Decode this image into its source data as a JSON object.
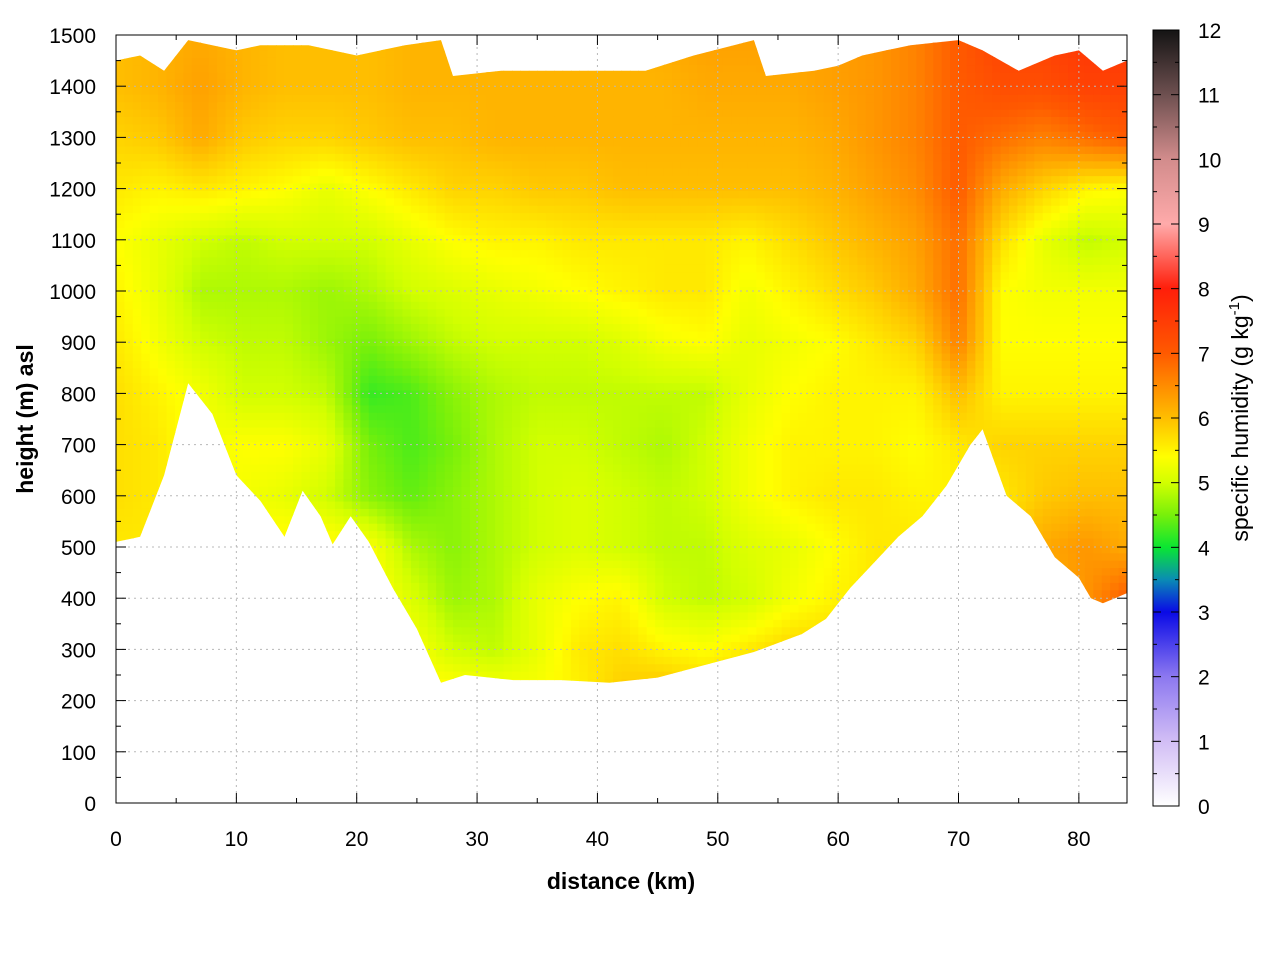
{
  "chart_data": {
    "type": "heatmap",
    "xlabel": "distance (km)",
    "ylabel": "height (m) asl",
    "xlim": [
      0,
      84
    ],
    "ylim": [
      0,
      1500
    ],
    "xticks": [
      0,
      10,
      20,
      30,
      40,
      50,
      60,
      70,
      80
    ],
    "yticks": [
      0,
      100,
      200,
      300,
      400,
      500,
      600,
      700,
      800,
      900,
      1000,
      1100,
      1200,
      1300,
      1400,
      1500
    ],
    "grid": true,
    "colorbar": {
      "title_text": "specific humidity (g kg",
      "title_superscript": "-1",
      "title_close": ")",
      "range": [
        0,
        12
      ],
      "ticks": [
        0,
        1,
        2,
        3,
        4,
        5,
        6,
        7,
        8,
        9,
        10,
        11,
        12
      ],
      "colormap": [
        {
          "value": 0,
          "color": "#ffffff"
        },
        {
          "value": 1,
          "color": "#d2bef5"
        },
        {
          "value": 2,
          "color": "#8c78f0"
        },
        {
          "value": 3,
          "color": "#0a0ae6"
        },
        {
          "value": 3.5,
          "color": "#0a8cb4"
        },
        {
          "value": 4,
          "color": "#0ae632"
        },
        {
          "value": 4.5,
          "color": "#78f00a"
        },
        {
          "value": 5,
          "color": "#d2ff00"
        },
        {
          "value": 5.4,
          "color": "#ffff00"
        },
        {
          "value": 6,
          "color": "#ffbe00"
        },
        {
          "value": 7,
          "color": "#ff5a00"
        },
        {
          "value": 8,
          "color": "#ff1e0a"
        },
        {
          "value": 9,
          "color": "#ffaaaa"
        },
        {
          "value": 10,
          "color": "#d28c8c"
        },
        {
          "value": 11,
          "color": "#6e5050"
        },
        {
          "value": 12,
          "color": "#141414"
        }
      ]
    },
    "terrain_height": {
      "x": [
        0,
        2,
        4,
        6,
        8,
        10,
        12,
        14,
        15.5,
        17,
        18,
        19.5,
        21,
        23,
        25,
        27,
        29,
        33,
        37,
        41,
        45,
        49,
        53,
        57,
        59,
        61,
        63,
        65,
        67,
        69,
        71,
        72,
        74,
        76,
        78,
        80,
        81,
        82,
        83,
        84
      ],
      "y": [
        510,
        520,
        640,
        820,
        760,
        640,
        590,
        520,
        610,
        560,
        505,
        560,
        510,
        420,
        340,
        235,
        250,
        240,
        240,
        235,
        245,
        270,
        295,
        330,
        360,
        420,
        470,
        520,
        560,
        620,
        700,
        730,
        600,
        560,
        480,
        440,
        400,
        390,
        400,
        410
      ]
    },
    "data_top": {
      "x": [
        0,
        2,
        4,
        6,
        8,
        10,
        12,
        16,
        20,
        24,
        27,
        28,
        32,
        36,
        40,
        44,
        48,
        53,
        54,
        58,
        60,
        62,
        66,
        70,
        72,
        75,
        78,
        80,
        82,
        84
      ],
      "y": [
        1450,
        1460,
        1430,
        1490,
        1480,
        1470,
        1480,
        1480,
        1460,
        1480,
        1490,
        1420,
        1430,
        1430,
        1430,
        1430,
        1460,
        1490,
        1420,
        1430,
        1440,
        1460,
        1480,
        1490,
        1470,
        1430,
        1460,
        1470,
        1430,
        1450
      ]
    },
    "field": {
      "x": [
        0,
        3.5,
        7,
        10.5,
        14,
        17.5,
        21,
        24.5,
        28,
        31.5,
        35,
        38.5,
        42,
        45.5,
        49,
        52.5,
        56,
        59.5,
        63,
        66.5,
        70,
        73.5,
        77,
        80.5,
        84
      ],
      "y": [
        200,
        300,
        400,
        500,
        600,
        700,
        800,
        900,
        1000,
        1100,
        1200,
        1300,
        1400,
        1500
      ],
      "q": [
        [
          5.5,
          5.5,
          5.5,
          5.5,
          5.5,
          5.5,
          5.5,
          5.4,
          5.6,
          5.5,
          5.4,
          5.5,
          5.9,
          6.1,
          5.9,
          5.8,
          5.8,
          5.8,
          5.8,
          5.8,
          5.8,
          5.8,
          5.9,
          6.0,
          6.2
        ],
        [
          5.5,
          5.5,
          5.5,
          5.5,
          5.5,
          5.5,
          5.5,
          5.4,
          5.0,
          4.9,
          5.2,
          5.6,
          5.7,
          5.5,
          5.4,
          5.6,
          5.8,
          5.8,
          5.8,
          5.8,
          5.8,
          5.8,
          5.9,
          6.0,
          6.2
        ],
        [
          5.5,
          5.5,
          5.5,
          5.5,
          5.5,
          5.5,
          5.5,
          5.1,
          4.7,
          4.8,
          5.2,
          5.4,
          5.5,
          5.0,
          4.9,
          5.0,
          5.3,
          5.5,
          5.6,
          5.6,
          5.6,
          5.8,
          6.1,
          6.4,
          7.0
        ],
        [
          5.6,
          5.6,
          5.6,
          5.5,
          5.5,
          5.5,
          5.4,
          4.8,
          4.6,
          4.8,
          5.0,
          5.1,
          5.0,
          4.9,
          4.9,
          5.1,
          5.2,
          5.4,
          5.6,
          5.6,
          5.6,
          5.8,
          6.2,
          6.4,
          6.2
        ],
        [
          5.7,
          5.6,
          5.4,
          5.3,
          5.2,
          5.0,
          4.6,
          4.4,
          4.6,
          4.8,
          5.0,
          5.1,
          5.0,
          4.9,
          5.0,
          5.3,
          5.5,
          5.6,
          5.6,
          5.5,
          5.5,
          5.6,
          5.9,
          6.0,
          6.0
        ],
        [
          5.7,
          5.6,
          5.3,
          5.4,
          5.4,
          5.2,
          4.5,
          4.3,
          4.5,
          4.8,
          5.0,
          5.0,
          4.9,
          4.8,
          5.0,
          5.3,
          5.5,
          5.5,
          5.5,
          5.4,
          5.6,
          5.8,
          5.8,
          5.8,
          5.8
        ],
        [
          5.7,
          5.5,
          5.3,
          5.0,
          5.0,
          4.9,
          4.2,
          4.3,
          4.6,
          4.8,
          4.9,
          4.9,
          4.9,
          4.9,
          4.9,
          5.2,
          5.4,
          5.5,
          5.5,
          5.5,
          6.0,
          5.5,
          5.5,
          5.5,
          5.5
        ],
        [
          5.6,
          5.3,
          5.0,
          4.9,
          4.9,
          4.7,
          4.5,
          4.7,
          4.9,
          5.0,
          5.0,
          5.0,
          5.1,
          5.3,
          5.4,
          5.2,
          5.3,
          5.4,
          5.6,
          5.8,
          6.6,
          5.4,
          5.4,
          5.4,
          5.4
        ],
        [
          5.5,
          5.2,
          4.8,
          4.8,
          4.8,
          4.7,
          4.8,
          5.0,
          5.1,
          5.2,
          5.3,
          5.4,
          5.5,
          5.6,
          5.6,
          5.3,
          5.5,
          5.7,
          5.9,
          6.2,
          6.8,
          5.4,
          5.3,
          5.3,
          5.3
        ],
        [
          5.4,
          5.2,
          5.0,
          4.9,
          5.0,
          5.0,
          5.0,
          5.2,
          5.4,
          5.5,
          5.5,
          5.6,
          5.6,
          5.6,
          5.6,
          5.5,
          5.7,
          5.9,
          6.1,
          6.3,
          6.8,
          5.7,
          5.2,
          4.9,
          5.0
        ],
        [
          5.6,
          5.5,
          5.6,
          5.5,
          5.4,
          5.2,
          5.4,
          5.6,
          5.8,
          5.8,
          5.9,
          5.9,
          6.0,
          6.0,
          6.0,
          6.0,
          6.0,
          6.1,
          6.3,
          6.5,
          7.0,
          6.2,
          5.8,
          5.5,
          5.4
        ],
        [
          5.8,
          5.9,
          6.2,
          5.9,
          5.8,
          5.8,
          5.9,
          6.0,
          6.0,
          6.1,
          6.1,
          6.1,
          6.1,
          6.1,
          6.1,
          6.1,
          6.1,
          6.2,
          6.4,
          6.6,
          7.0,
          6.8,
          6.6,
          6.8,
          7.0
        ],
        [
          6.0,
          6.1,
          6.3,
          6.1,
          6.0,
          6.0,
          6.0,
          6.1,
          6.1,
          6.1,
          6.1,
          6.1,
          6.1,
          6.1,
          6.2,
          6.2,
          6.2,
          6.3,
          6.4,
          6.6,
          7.0,
          7.2,
          7.2,
          7.4,
          7.4
        ],
        [
          6.0,
          6.1,
          6.2,
          6.1,
          6.0,
          6.0,
          6.0,
          6.1,
          6.1,
          6.1,
          6.1,
          6.1,
          6.1,
          6.2,
          6.3,
          6.3,
          6.3,
          6.3,
          6.4,
          6.6,
          7.0,
          7.4,
          7.4,
          7.6,
          7.6
        ]
      ]
    }
  }
}
